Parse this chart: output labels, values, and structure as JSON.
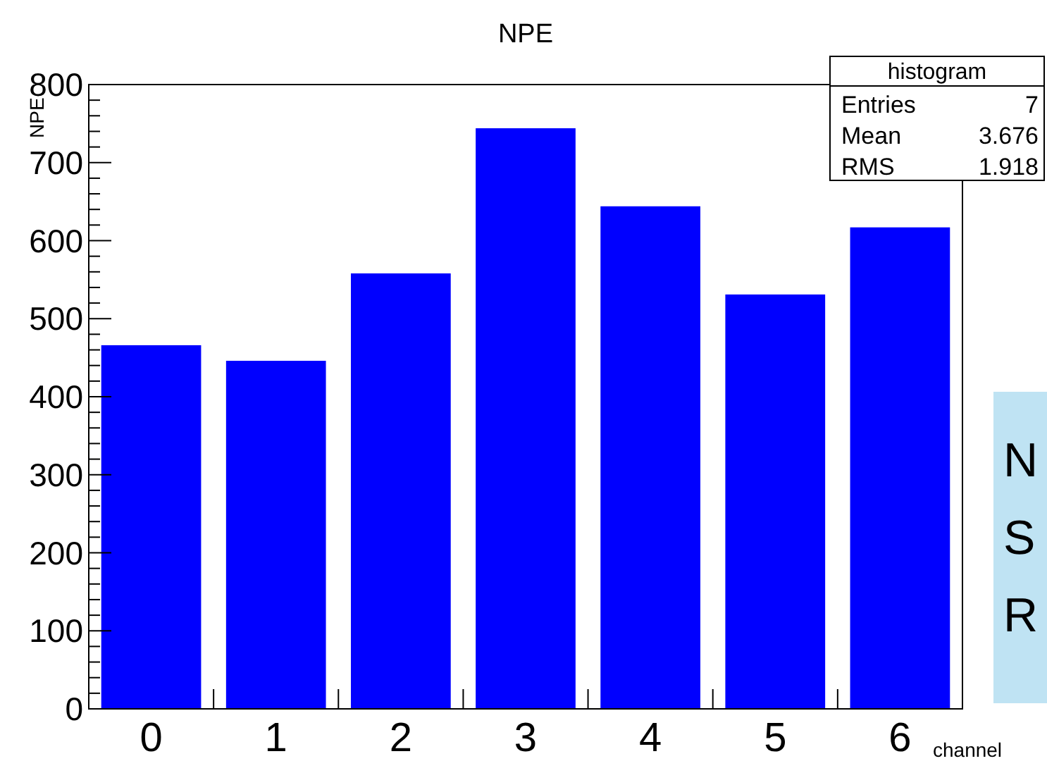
{
  "chart_data": {
    "type": "bar",
    "title": "NPE",
    "xlabel": "channel",
    "ylabel": "NPE",
    "categories": [
      "0",
      "1",
      "2",
      "3",
      "4",
      "5",
      "6"
    ],
    "values": [
      466,
      446,
      558,
      744,
      644,
      531,
      617
    ],
    "color": "#0000ff",
    "ylim": [
      0,
      800
    ],
    "yticks": [
      0,
      100,
      200,
      300,
      400,
      500,
      600,
      700,
      800
    ],
    "grid": false,
    "annotations": [
      "histogram",
      "Entries",
      "7",
      "Mean",
      "3.676",
      "RMS",
      "1.918",
      "N",
      "S",
      "R"
    ]
  }
}
